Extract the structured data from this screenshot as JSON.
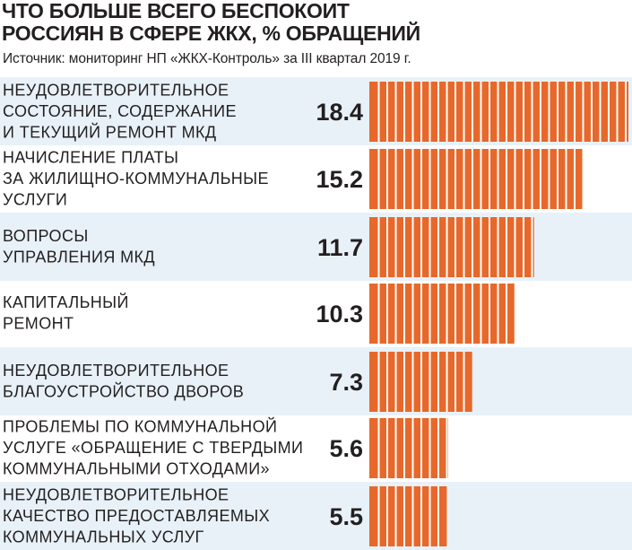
{
  "chart_data": {
    "type": "bar",
    "orientation": "horizontal",
    "title": "ЧТО БОЛЬШЕ ВСЕГО БЕСПОКОИТ РОССИЯН В СФЕРЕ ЖКХ, % ОБРАЩЕНИЙ",
    "title_lines": [
      "ЧТО БОЛЬШЕ ВСЕГО БЕСПОКОИТ",
      "РОССИЯН В СФЕРЕ ЖКХ, % ОБРАЩЕНИЙ"
    ],
    "subtitle": "Источник: мониторинг НП «ЖКХ-Контроль» за III квартал 2019 г.",
    "categories": [
      [
        "НЕУДОВЛЕТВОРИТЕЛЬНОЕ",
        "СОСТОЯНИЕ, СОДЕРЖАНИЕ",
        "И ТЕКУЩИЙ РЕМОНТ МКД"
      ],
      [
        "НАЧИСЛЕНИЕ ПЛАТЫ",
        "ЗА ЖИЛИЩНО-КОММУНАЛЬНЫЕ",
        "УСЛУГИ"
      ],
      [
        "ВОПРОСЫ",
        "УПРАВЛЕНИЯ МКД"
      ],
      [
        "КАПИТАЛЬНЫЙ",
        "РЕМОНТ"
      ],
      [
        "НЕУДОВЛЕТВОРИТЕЛЬНОЕ",
        "БЛАГОУСТРОЙСТВО ДВОРОВ"
      ],
      [
        "ПРОБЛЕМЫ ПО КОММУНАЛЬНОЙ",
        "УСЛУГЕ «ОБРАЩЕНИЕ С ТВЕРДЫМИ",
        "КОММУНАЛЬНЫМИ ОТХОДАМИ»"
      ],
      [
        "НЕУДОВЛЕТВОРИТЕЛЬНОЕ",
        "КАЧЕСТВО ПРЕДОСТАВЛЯЕМЫХ",
        "КОММУНАЛЬНЫХ УСЛУГ"
      ]
    ],
    "values": [
      18.4,
      15.2,
      11.7,
      10.3,
      7.3,
      5.6,
      5.5
    ],
    "value_labels": [
      "18.4",
      "15.2",
      "11.7",
      "10.3",
      "7.3",
      "5.6",
      "5.5"
    ],
    "xlim": [
      0,
      18.4
    ],
    "grid": false,
    "legend": "none",
    "colors": {
      "bar": "#e7682b",
      "bar_stripe": "#ffffff",
      "row_band": "#e8f1f8",
      "text": "#231f20"
    }
  }
}
